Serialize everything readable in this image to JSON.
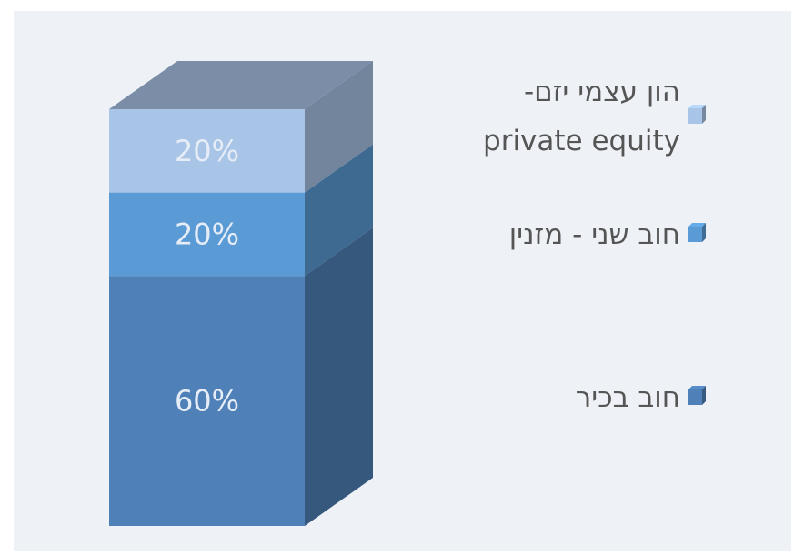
{
  "chart_data": {
    "type": "bar",
    "stacked": true,
    "categories": [
      null
    ],
    "series": [
      {
        "name": "חוב בכיר",
        "color": "#4f81b8",
        "values": [
          60
        ],
        "value_labels": [
          "60%"
        ]
      },
      {
        "name": "חוב שני - מזנין",
        "color": "#5b9bd5",
        "values": [
          20
        ],
        "value_labels": [
          "20%"
        ]
      },
      {
        "name": "הון עצמי יזם-\nprivate equity",
        "color": "#a8c4e6",
        "values": [
          20
        ],
        "value_labels": [
          "20%"
        ]
      }
    ]
  }
}
